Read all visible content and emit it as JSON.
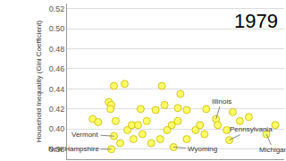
{
  "chart_data": {
    "type": "scatter",
    "annotation": "1979",
    "y_label": "Household Inequality (Gini Coefficient)",
    "x": [
      21.6,
      20.4,
      49.0,
      68.6,
      74.7,
      91.8,
      11.8,
      14.3,
      19.2,
      20.4,
      21.6,
      26.5,
      20.0,
      22.4,
      24.5,
      27.8,
      29.8,
      30.6,
      32.7,
      33.9,
      34.7,
      36.7,
      40.8,
      38.8,
      42.9,
      43.7,
      44.9,
      46.1,
      48.2,
      51.0,
      51.0,
      52.2,
      55.1,
      55.1,
      59.2,
      61.2,
      63.3,
      64.1,
      69.4,
      73.5,
      76.3,
      79.6,
      83.7,
      95.9
    ],
    "values": [
      0.393,
      0.38,
      0.382,
      0.41,
      0.389,
      0.395,
      0.41,
      0.407,
      0.427,
      0.424,
      0.443,
      0.445,
      0.42,
      0.408,
      0.386,
      0.399,
      0.404,
      0.39,
      0.404,
      0.42,
      0.395,
      0.408,
      0.419,
      0.386,
      0.39,
      0.443,
      0.424,
      0.399,
      0.404,
      0.408,
      0.421,
      0.435,
      0.419,
      0.39,
      0.399,
      0.404,
      0.395,
      0.42,
      0.404,
      0.399,
      0.417,
      0.408,
      0.412,
      0.404
    ],
    "labels": [
      "Vermont",
      "New Hampshire",
      "Wyoming",
      "Illinois",
      "Pennsylvania",
      "Michigan",
      null,
      null,
      null,
      null,
      null,
      null,
      null,
      null,
      null,
      null,
      null,
      null,
      null,
      null,
      null,
      null,
      null,
      null,
      null,
      null,
      null,
      null,
      null,
      null,
      null,
      null,
      null,
      null,
      null,
      null,
      null,
      null,
      null,
      null,
      null,
      null,
      null,
      null
    ],
    "color": "#ffff66",
    "marker": "circle",
    "xlim": [
      0,
      100
    ],
    "ylim": [
      0.37,
      0.525
    ],
    "yticks": [
      {
        "value": 0.38,
        "label": "0.38"
      },
      {
        "value": 0.4,
        "label": "0.40"
      },
      {
        "value": 0.42,
        "label": "0.42"
      },
      {
        "value": 0.44,
        "label": "0.44"
      },
      {
        "value": 0.46,
        "label": "0.46"
      },
      {
        "value": 0.48,
        "label": "0.48"
      },
      {
        "value": 0.5,
        "label": "0.50"
      },
      {
        "value": 0.52,
        "label": "0.52"
      }
    ],
    "grid": true,
    "tick_labels": "y"
  }
}
